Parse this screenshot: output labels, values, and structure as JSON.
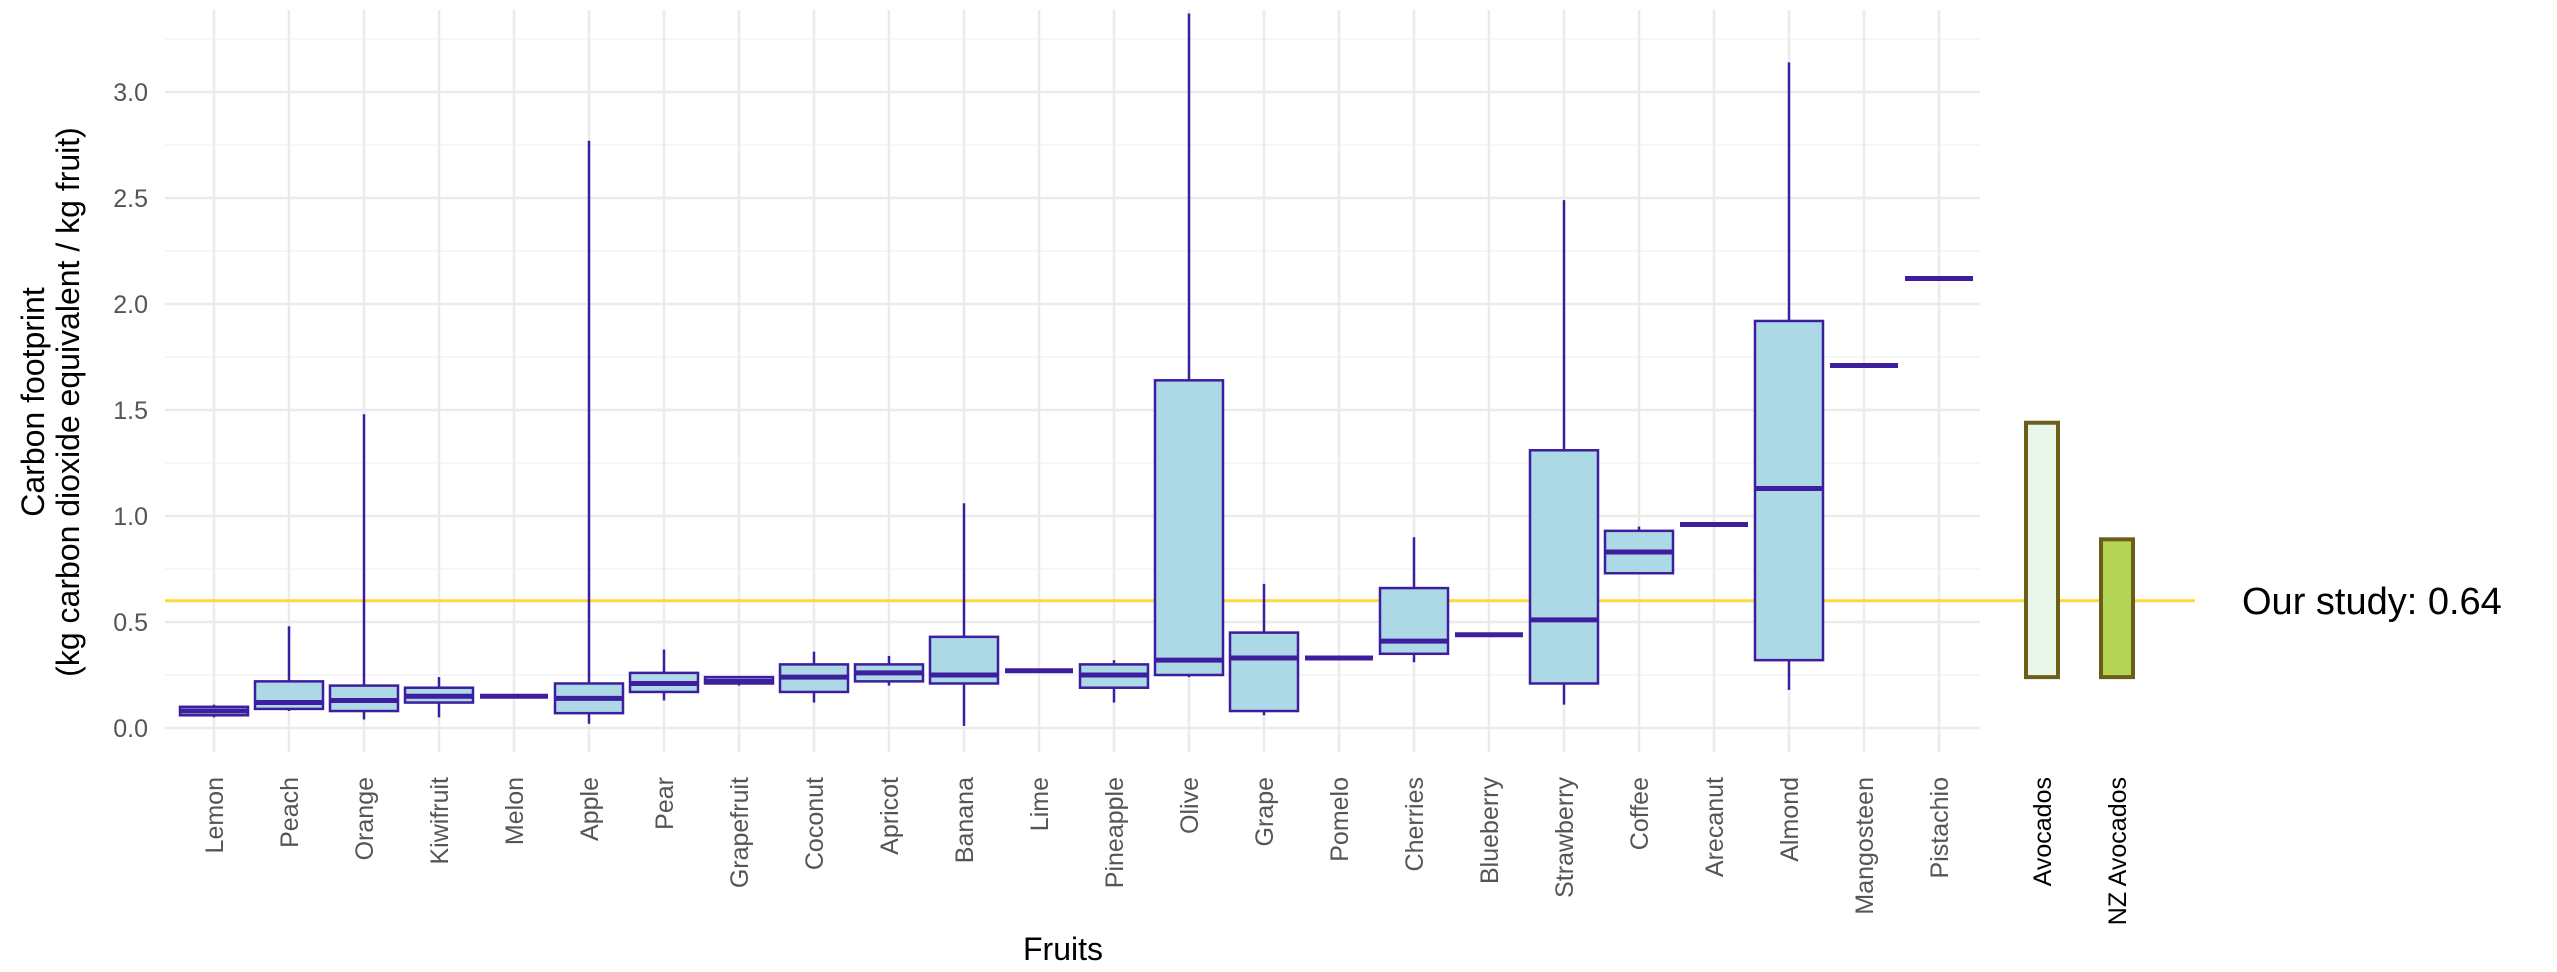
{
  "chart_data": {
    "type": "box",
    "xlabel": "Fruits",
    "ylabel_line1": "Carbon footprint",
    "ylabel_line2": "(kg carbon dioxide equivalent / kg fruit)",
    "ylim": [
      -0.05,
      3.4
    ],
    "yticks": [
      "0.0",
      "0.5",
      "1.0",
      "1.5",
      "2.0",
      "2.5",
      "3.0"
    ],
    "grid": true,
    "categories": [
      "Lemon",
      "Peach",
      "Orange",
      "Kiwifruit",
      "Melon",
      "Apple",
      "Pear",
      "Grapefruit",
      "Coconut",
      "Apricot",
      "Banana",
      "Lime",
      "Pineapple",
      "Olive",
      "Grape",
      "Pomelo",
      "Cherries",
      "Blueberry",
      "Strawberry",
      "Coffee",
      "Arecanut",
      "Almond",
      "Mangosteen",
      "Pistachio"
    ],
    "boxes": [
      {
        "min": 0.05,
        "q1": 0.06,
        "median": 0.08,
        "q3": 0.1,
        "max": 0.11
      },
      {
        "min": 0.08,
        "q1": 0.09,
        "median": 0.12,
        "q3": 0.22,
        "max": 0.48
      },
      {
        "min": 0.04,
        "q1": 0.08,
        "median": 0.13,
        "q3": 0.2,
        "max": 1.48
      },
      {
        "min": 0.05,
        "q1": 0.12,
        "median": 0.15,
        "q3": 0.19,
        "max": 0.24
      },
      {
        "min": 0.15,
        "q1": 0.15,
        "median": 0.15,
        "q3": 0.15,
        "max": 0.15
      },
      {
        "min": 0.02,
        "q1": 0.07,
        "median": 0.14,
        "q3": 0.21,
        "max": 2.77
      },
      {
        "min": 0.13,
        "q1": 0.17,
        "median": 0.21,
        "q3": 0.26,
        "max": 0.37
      },
      {
        "min": 0.2,
        "q1": 0.21,
        "median": 0.22,
        "q3": 0.24,
        "max": 0.24
      },
      {
        "min": 0.12,
        "q1": 0.17,
        "median": 0.24,
        "q3": 0.3,
        "max": 0.36
      },
      {
        "min": 0.2,
        "q1": 0.22,
        "median": 0.26,
        "q3": 0.3,
        "max": 0.34
      },
      {
        "min": 0.01,
        "q1": 0.21,
        "median": 0.25,
        "q3": 0.43,
        "max": 1.06
      },
      {
        "min": 0.27,
        "q1": 0.27,
        "median": 0.27,
        "q3": 0.27,
        "max": 0.27
      },
      {
        "min": 0.12,
        "q1": 0.19,
        "median": 0.25,
        "q3": 0.3,
        "max": 0.32
      },
      {
        "min": 0.24,
        "q1": 0.25,
        "median": 0.32,
        "q3": 1.64,
        "max": 3.37
      },
      {
        "min": 0.06,
        "q1": 0.08,
        "median": 0.33,
        "q3": 0.45,
        "max": 0.68
      },
      {
        "min": 0.33,
        "q1": 0.33,
        "median": 0.33,
        "q3": 0.33,
        "max": 0.33
      },
      {
        "min": 0.31,
        "q1": 0.35,
        "median": 0.41,
        "q3": 0.66,
        "max": 0.9
      },
      {
        "min": 0.44,
        "q1": 0.44,
        "median": 0.44,
        "q3": 0.44,
        "max": 0.44
      },
      {
        "min": 0.11,
        "q1": 0.21,
        "median": 0.51,
        "q3": 1.31,
        "max": 2.49
      },
      {
        "min": 0.73,
        "q1": 0.73,
        "median": 0.83,
        "q3": 0.93,
        "max": 0.95
      },
      {
        "min": 0.96,
        "q1": 0.96,
        "median": 0.96,
        "q3": 0.96,
        "max": 0.96
      },
      {
        "min": 0.18,
        "q1": 0.32,
        "median": 1.13,
        "q3": 1.92,
        "max": 3.14
      },
      {
        "min": 1.71,
        "q1": 1.71,
        "median": 1.71,
        "q3": 1.71,
        "max": 1.71
      },
      {
        "min": 2.12,
        "q1": 2.12,
        "median": 2.12,
        "q3": 2.12,
        "max": 2.12
      }
    ],
    "extra_ranges": [
      {
        "name": "Avocados",
        "low": 0.24,
        "high": 1.44,
        "fill": "#e8f5e9",
        "stroke": "#6b5e1a"
      },
      {
        "name": "NZ Avocados",
        "low": 0.24,
        "high": 0.89,
        "fill": "#b4d455",
        "stroke": "#6b5e1a"
      }
    ],
    "reference_line": {
      "value": 0.6,
      "label": "Our study: 0.64",
      "color": "#ffd83a"
    },
    "colors": {
      "box_fill": "#add8e6",
      "box_stroke": "#3c1e9e",
      "grid": "#ebebeb"
    }
  }
}
